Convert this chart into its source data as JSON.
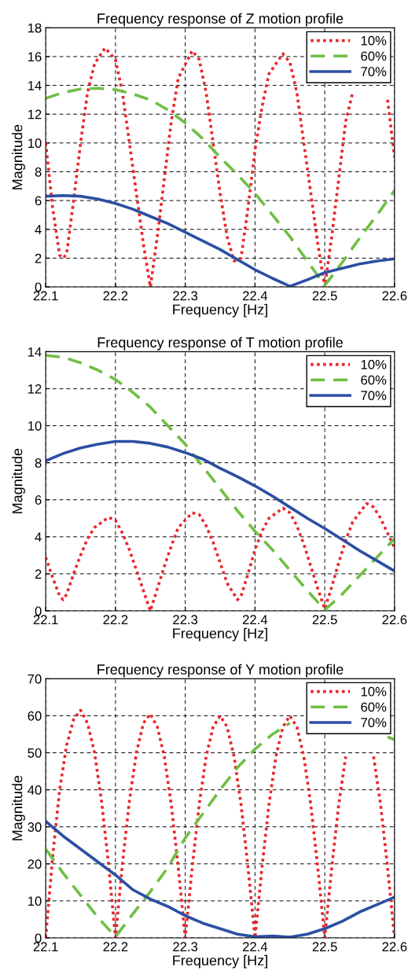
{
  "chart_data": [
    {
      "type": "line",
      "title": "Frequency response of Z motion profile",
      "xlabel": "Frequency [Hz]",
      "ylabel": "Magnitude",
      "xlim": [
        22.1,
        22.6
      ],
      "xticks": [
        22.1,
        22.2,
        22.3,
        22.4,
        22.5,
        22.6
      ],
      "ylim": [
        0,
        18
      ],
      "yticks": [
        0,
        2,
        4,
        6,
        8,
        10,
        12,
        14,
        16,
        18
      ],
      "grid": true,
      "legend": "top right",
      "series": [
        {
          "name": "10%",
          "color": "#e8262b",
          "line_style": "dotted",
          "x": [
            22.1,
            22.11,
            22.12,
            22.125,
            22.13,
            22.14,
            22.15,
            22.16,
            22.17,
            22.185,
            22.2,
            22.21,
            22.22,
            22.23,
            22.24,
            22.25,
            22.26,
            22.27,
            22.28,
            22.29,
            22.31,
            22.32,
            22.33,
            22.34,
            22.35,
            22.36,
            22.37,
            22.38,
            22.39,
            22.4,
            22.41,
            22.42,
            22.44,
            22.45,
            22.46,
            22.47,
            22.48,
            22.49,
            22.5,
            22.51,
            22.52,
            22.53,
            22.54,
            22.565,
            22.59,
            22.6
          ],
          "values": [
            10,
            5.5,
            2.2,
            2.0,
            2.3,
            6,
            10,
            13.5,
            15.5,
            16.6,
            15.8,
            13.5,
            10,
            6.5,
            3,
            0,
            3.5,
            7.5,
            11.5,
            14.5,
            16.4,
            15.8,
            13.5,
            10,
            6.5,
            3.5,
            1.8,
            2,
            5.5,
            9.5,
            12.5,
            14.8,
            16.2,
            15.6,
            13.5,
            10,
            6.5,
            3,
            0,
            3.5,
            7.5,
            11.5,
            13.5,
            null,
            13,
            9
          ]
        },
        {
          "name": "60%",
          "color": "#6fbf44",
          "line_style": "dashed",
          "x": [
            22.1,
            22.125,
            22.15,
            22.175,
            22.2,
            22.225,
            22.25,
            22.275,
            22.3,
            22.325,
            22.35,
            22.375,
            22.4,
            22.425,
            22.45,
            22.475,
            22.5,
            22.525,
            22.55,
            22.575,
            22.6
          ],
          "values": [
            13.1,
            13.5,
            13.75,
            13.8,
            13.7,
            13.4,
            13.0,
            12.3,
            11.4,
            10.3,
            9.0,
            7.8,
            6.5,
            5.0,
            3.5,
            1.8,
            0.1,
            1.7,
            3.4,
            5.0,
            6.7
          ]
        },
        {
          "name": "70%",
          "color": "#2b4fa3",
          "line_style": "solid",
          "x": [
            22.1,
            22.125,
            22.15,
            22.175,
            22.2,
            22.225,
            22.25,
            22.275,
            22.3,
            22.325,
            22.35,
            22.375,
            22.4,
            22.425,
            22.45,
            22.475,
            22.5,
            22.525,
            22.55,
            22.575,
            22.6
          ],
          "values": [
            6.3,
            6.35,
            6.3,
            6.1,
            5.8,
            5.4,
            4.9,
            4.4,
            3.8,
            3.2,
            2.6,
            1.9,
            1.2,
            0.6,
            0.05,
            0.5,
            1.0,
            1.3,
            1.6,
            1.8,
            1.95
          ]
        }
      ]
    },
    {
      "type": "line",
      "title": "Frequency response of T motion profile",
      "xlabel": "Frequency [Hz]",
      "ylabel": "Magnitude",
      "xlim": [
        22.1,
        22.6
      ],
      "xticks": [
        22.1,
        22.2,
        22.3,
        22.4,
        22.5,
        22.6
      ],
      "ylim": [
        0,
        14
      ],
      "yticks": [
        0,
        2,
        4,
        6,
        8,
        10,
        12,
        14
      ],
      "grid": true,
      "legend": "top right",
      "series": [
        {
          "name": "10%",
          "color": "#e8262b",
          "line_style": "dotted",
          "x": [
            22.1,
            22.11,
            22.12,
            22.125,
            22.13,
            22.14,
            22.15,
            22.16,
            22.17,
            22.19,
            22.2,
            22.21,
            22.22,
            22.23,
            22.24,
            22.25,
            22.26,
            22.27,
            22.28,
            22.29,
            22.31,
            22.32,
            22.33,
            22.34,
            22.35,
            22.36,
            22.375,
            22.38,
            22.39,
            22.4,
            22.41,
            22.42,
            22.44,
            22.45,
            22.46,
            22.47,
            22.48,
            22.49,
            22.5,
            22.51,
            22.52,
            22.53,
            22.54,
            22.56,
            22.57,
            22.58,
            22.59,
            22.6
          ],
          "values": [
            2.9,
            1.8,
            0.8,
            0.6,
            0.9,
            2,
            3,
            3.9,
            4.5,
            5.05,
            4.9,
            4.2,
            3.3,
            2.2,
            1.1,
            0,
            1.2,
            2.4,
            3.5,
            4.5,
            5.3,
            5.2,
            4.6,
            3.7,
            2.6,
            1.5,
            0.6,
            0.8,
            2,
            3.3,
            4.3,
            5,
            5.55,
            5.3,
            4.6,
            3.6,
            2.4,
            1.2,
            0.1,
            1.3,
            2.6,
            3.8,
            4.8,
            5.8,
            5.6,
            5,
            4.2,
            3.4
          ]
        },
        {
          "name": "60%",
          "color": "#6fbf44",
          "line_style": "dashed",
          "x": [
            22.1,
            22.125,
            22.15,
            22.175,
            22.2,
            22.225,
            22.25,
            22.275,
            22.3,
            22.325,
            22.35,
            22.375,
            22.4,
            22.425,
            22.45,
            22.475,
            22.5,
            22.525,
            22.55,
            22.575,
            22.6
          ],
          "values": [
            13.8,
            13.7,
            13.4,
            13,
            12.5,
            11.8,
            11,
            10,
            9.0,
            7.8,
            6.6,
            5.4,
            4.3,
            3.3,
            2.2,
            1.1,
            0.05,
            0.9,
            1.9,
            2.9,
            3.9
          ]
        },
        {
          "name": "70%",
          "color": "#2b4fa3",
          "line_style": "solid",
          "x": [
            22.1,
            22.125,
            22.15,
            22.175,
            22.2,
            22.225,
            22.25,
            22.275,
            22.3,
            22.325,
            22.35,
            22.375,
            22.4,
            22.425,
            22.45,
            22.475,
            22.5,
            22.525,
            22.55,
            22.575,
            22.6
          ],
          "values": [
            8.1,
            8.5,
            8.8,
            9.0,
            9.15,
            9.15,
            9.05,
            8.85,
            8.55,
            8.2,
            7.7,
            7.25,
            6.75,
            6.2,
            5.6,
            5.0,
            4.45,
            3.85,
            3.25,
            2.7,
            2.15
          ]
        }
      ]
    },
    {
      "type": "line",
      "title": "Frequency response of Y motion profile",
      "xlabel": "Frequency [Hz]",
      "ylabel": "Magnitude",
      "xlim": [
        22.1,
        22.6
      ],
      "xticks": [
        22.1,
        22.2,
        22.3,
        22.4,
        22.5,
        22.6
      ],
      "ylim": [
        0,
        70
      ],
      "yticks": [
        0,
        10,
        20,
        30,
        40,
        50,
        60,
        70
      ],
      "grid": true,
      "legend": "top right",
      "series": [
        {
          "name": "10%",
          "color": "#e8262b",
          "line_style": "dotted",
          "x": [
            22.1,
            22.11,
            22.12,
            22.13,
            22.14,
            22.15,
            22.16,
            22.17,
            22.18,
            22.19,
            22.2,
            22.21,
            22.22,
            22.23,
            22.24,
            22.25,
            22.26,
            22.27,
            22.28,
            22.29,
            22.3,
            22.31,
            22.32,
            22.33,
            22.34,
            22.35,
            22.36,
            22.37,
            22.38,
            22.39,
            22.4,
            22.41,
            22.42,
            22.43,
            22.44,
            22.45,
            22.46,
            22.47,
            22.48,
            22.49,
            22.5,
            22.51,
            22.52,
            22.53,
            22.55,
            22.57,
            22.58,
            22.59,
            22.6
          ],
          "values": [
            0,
            22,
            40,
            52,
            59,
            61.5,
            58,
            50,
            37,
            20,
            0,
            20,
            37,
            50,
            58,
            60.5,
            57,
            49,
            36,
            19,
            0,
            19,
            36,
            49,
            57,
            60,
            57,
            49,
            36,
            19,
            0,
            19,
            36,
            49,
            57,
            60,
            57,
            49,
            36,
            19,
            0,
            19,
            36,
            49,
            null,
            49,
            36,
            19,
            0
          ]
        },
        {
          "name": "60%",
          "color": "#6fbf44",
          "line_style": "dashed",
          "x": [
            22.1,
            22.125,
            22.15,
            22.175,
            22.2,
            22.225,
            22.25,
            22.275,
            22.3,
            22.325,
            22.35,
            22.375,
            22.4,
            22.425,
            22.45,
            22.5,
            22.59,
            22.6
          ],
          "values": [
            24,
            17.5,
            11.5,
            5.5,
            0.3,
            6.5,
            12.5,
            19,
            27,
            33.5,
            40,
            46,
            51,
            55,
            58,
            null,
            54.3,
            53.5
          ]
        },
        {
          "name": "70%",
          "color": "#2b4fa3",
          "line_style": "solid",
          "x": [
            22.1,
            22.125,
            22.15,
            22.175,
            22.2,
            22.225,
            22.25,
            22.275,
            22.3,
            22.325,
            22.35,
            22.375,
            22.4,
            22.425,
            22.45,
            22.475,
            22.5,
            22.525,
            22.55,
            22.575,
            22.6
          ],
          "values": [
            31.5,
            27.5,
            24,
            20.5,
            17,
            13,
            10.5,
            8.5,
            6,
            4,
            2.5,
            1,
            0.3,
            0.5,
            0.2,
            1,
            2.5,
            4.5,
            7,
            9,
            11
          ]
        }
      ]
    }
  ]
}
